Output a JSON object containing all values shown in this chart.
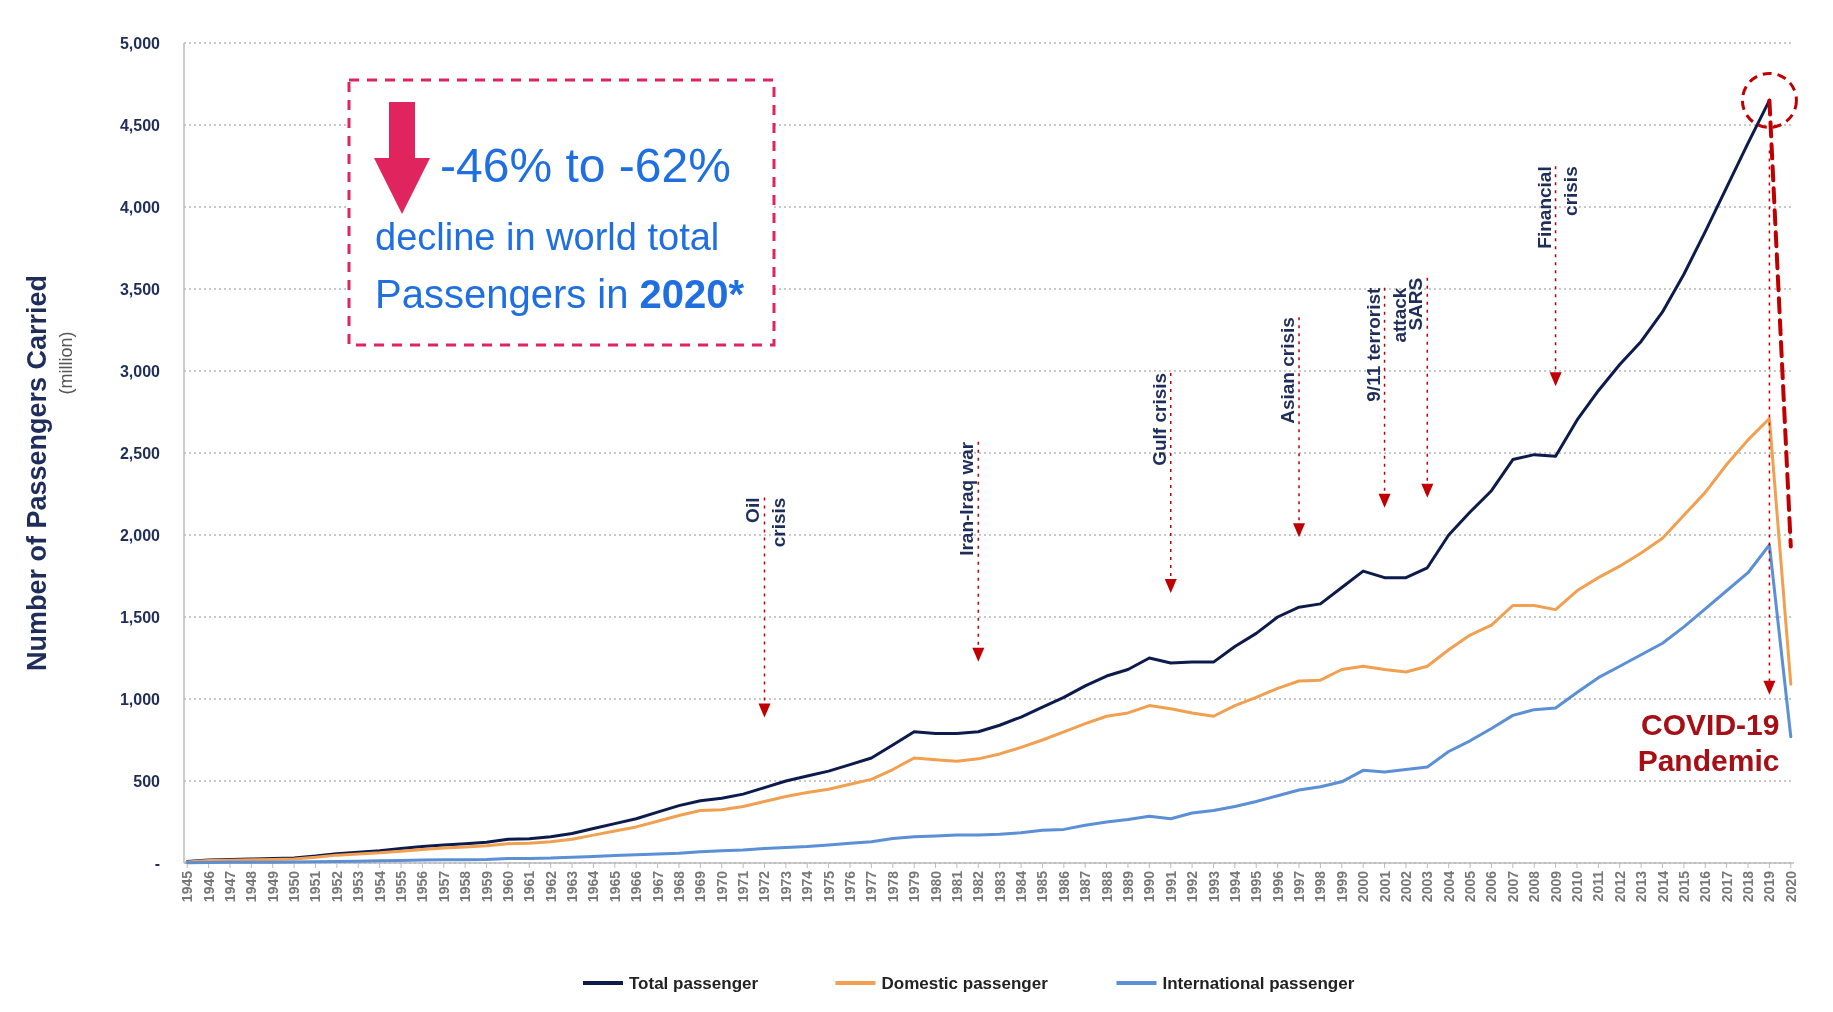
{
  "chart_data": {
    "type": "line",
    "ylabel": "Number of Passengers Carried\n(million)",
    "categories": [
      "1945",
      "1946",
      "1947",
      "1948",
      "1949",
      "1950",
      "1951",
      "1952",
      "1953",
      "1954",
      "1955",
      "1956",
      "1957",
      "1958",
      "1959",
      "1960",
      "1961",
      "1962",
      "1963",
      "1964",
      "1965",
      "1966",
      "1967",
      "1968",
      "1969",
      "1970",
      "1971",
      "1972",
      "1973",
      "1974",
      "1975",
      "1976",
      "1977",
      "1978",
      "1979",
      "1980",
      "1981",
      "1982",
      "1983",
      "1984",
      "1985",
      "1986",
      "1987",
      "1988",
      "1989",
      "1990",
      "1991",
      "1992",
      "1993",
      "1994",
      "1995",
      "1996",
      "1997",
      "1998",
      "1999",
      "2000",
      "2001",
      "2002",
      "2003",
      "2004",
      "2005",
      "2006",
      "2007",
      "2008",
      "2009",
      "2010",
      "2011",
      "2012",
      "2013",
      "2014",
      "2015",
      "2016",
      "2017",
      "2018",
      "2019",
      "2020"
    ],
    "series": [
      {
        "name": "Total passenger",
        "color": "#0d1b4c",
        "values": [
          9,
          18,
          21,
          24,
          27,
          31,
          42,
          57,
          66,
          75,
          88,
          100,
          110,
          118,
          127,
          145,
          148,
          160,
          180,
          210,
          240,
          270,
          310,
          350,
          380,
          395,
          420,
          460,
          500,
          530,
          560,
          600,
          640,
          720,
          800,
          790,
          790,
          800,
          840,
          890,
          950,
          1010,
          1080,
          1140,
          1180,
          1250,
          1220,
          1225,
          1225,
          1320,
          1400,
          1500,
          1560,
          1580,
          1680,
          1780,
          1740,
          1740,
          1800,
          2000,
          2140,
          2270,
          2460,
          2490,
          2480,
          2700,
          2880,
          3040,
          3180,
          3360,
          3590,
          3850,
          4120,
          4390,
          4650,
          null
        ]
      },
      {
        "name": "Domestic passenger",
        "color": "#f0a050",
        "values": [
          6,
          15,
          17,
          20,
          22,
          25,
          35,
          48,
          55,
          62,
          72,
          82,
          92,
          98,
          105,
          118,
          120,
          130,
          145,
          170,
          195,
          220,
          255,
          290,
          320,
          325,
          345,
          375,
          405,
          430,
          450,
          480,
          510,
          570,
          640,
          630,
          620,
          635,
          665,
          705,
          750,
          800,
          850,
          895,
          915,
          960,
          940,
          915,
          895,
          960,
          1010,
          1065,
          1110,
          1115,
          1180,
          1200,
          1180,
          1165,
          1200,
          1300,
          1390,
          1450,
          1570,
          1570,
          1545,
          1660,
          1740,
          1810,
          1890,
          1980,
          2120,
          2260,
          2430,
          2580,
          2710,
          1090
        ]
      },
      {
        "name": "International passenger",
        "color": "#5b8fd6",
        "values": [
          2,
          3,
          4,
          4,
          5,
          6,
          7,
          9,
          11,
          13,
          16,
          18,
          20,
          20,
          22,
          27,
          28,
          30,
          35,
          40,
          45,
          50,
          55,
          60,
          68,
          75,
          80,
          88,
          95,
          100,
          110,
          120,
          130,
          150,
          160,
          165,
          170,
          170,
          175,
          185,
          200,
          205,
          230,
          250,
          265,
          285,
          270,
          305,
          320,
          345,
          375,
          410,
          445,
          465,
          495,
          565,
          555,
          570,
          585,
          680,
          745,
          820,
          900,
          935,
          945,
          1040,
          1130,
          1200,
          1270,
          1340,
          1440,
          1550,
          1660,
          1770,
          1940,
          770
        ]
      },
      {
        "color": "#c00000",
        "line_style": "dashed",
        "values": [
          null,
          null,
          null,
          null,
          null,
          null,
          null,
          null,
          null,
          null,
          null,
          null,
          null,
          null,
          null,
          null,
          null,
          null,
          null,
          null,
          null,
          null,
          null,
          null,
          null,
          null,
          null,
          null,
          null,
          null,
          null,
          null,
          null,
          null,
          null,
          null,
          null,
          null,
          null,
          null,
          null,
          null,
          null,
          null,
          null,
          null,
          null,
          null,
          null,
          null,
          null,
          null,
          null,
          null,
          null,
          null,
          null,
          null,
          null,
          null,
          null,
          null,
          null,
          null,
          null,
          null,
          null,
          null,
          null,
          null,
          null,
          null,
          null,
          null,
          4650,
          1930
        ]
      }
    ],
    "ylim": [
      0,
      5000
    ],
    "yticks": [
      {
        "value": 0,
        "label": "-"
      },
      {
        "value": 500,
        "label": "500"
      },
      {
        "value": 1000,
        "label": "1,000"
      },
      {
        "value": 1500,
        "label": "1,500"
      },
      {
        "value": 2000,
        "label": "2,000"
      },
      {
        "value": 2500,
        "label": "2,500"
      },
      {
        "value": 3000,
        "label": "3,000"
      },
      {
        "value": 3500,
        "label": "3,500"
      },
      {
        "value": 4000,
        "label": "4,000"
      },
      {
        "value": 4500,
        "label": "4,500"
      },
      {
        "value": 5000,
        "label": "5,000"
      }
    ],
    "grid": "y",
    "legend": "bottom",
    "marker": "none",
    "line_style": "solid",
    "annotations": [
      "-46% to -62%",
      "decline in world total",
      "Passengers in 2020*"
    ],
    "ref_lines": [
      {
        "axis": "x",
        "value": "1972",
        "label": "Oil\ncrisis",
        "color": "#c00000",
        "line_style": "dotted"
      },
      {
        "axis": "x",
        "value": "1982",
        "label": "Iran-Iraq war",
        "color": "#c00000",
        "line_style": "dotted"
      },
      {
        "axis": "x",
        "value": "1991",
        "label": "Gulf crisis",
        "color": "#c00000",
        "line_style": "dotted"
      },
      {
        "axis": "x",
        "value": "1997",
        "label": "Asian crisis",
        "color": "#c00000",
        "line_style": "dotted"
      },
      {
        "axis": "x",
        "value": "2001",
        "label": "9/11 terrorist\nattack",
        "color": "#c00000",
        "line_style": "dotted"
      },
      {
        "axis": "x",
        "value": "2003",
        "label": "SARS",
        "color": "#c00000",
        "line_style": "dotted"
      },
      {
        "axis": "x",
        "value": "2009",
        "label": "Financial\ncrisis",
        "color": "#c00000",
        "line_style": "dotted"
      },
      {
        "axis": "x",
        "value": "2019",
        "label": "COVID-19\nPandemic",
        "color": "#c00000",
        "line_style": "dotted"
      }
    ]
  }
}
